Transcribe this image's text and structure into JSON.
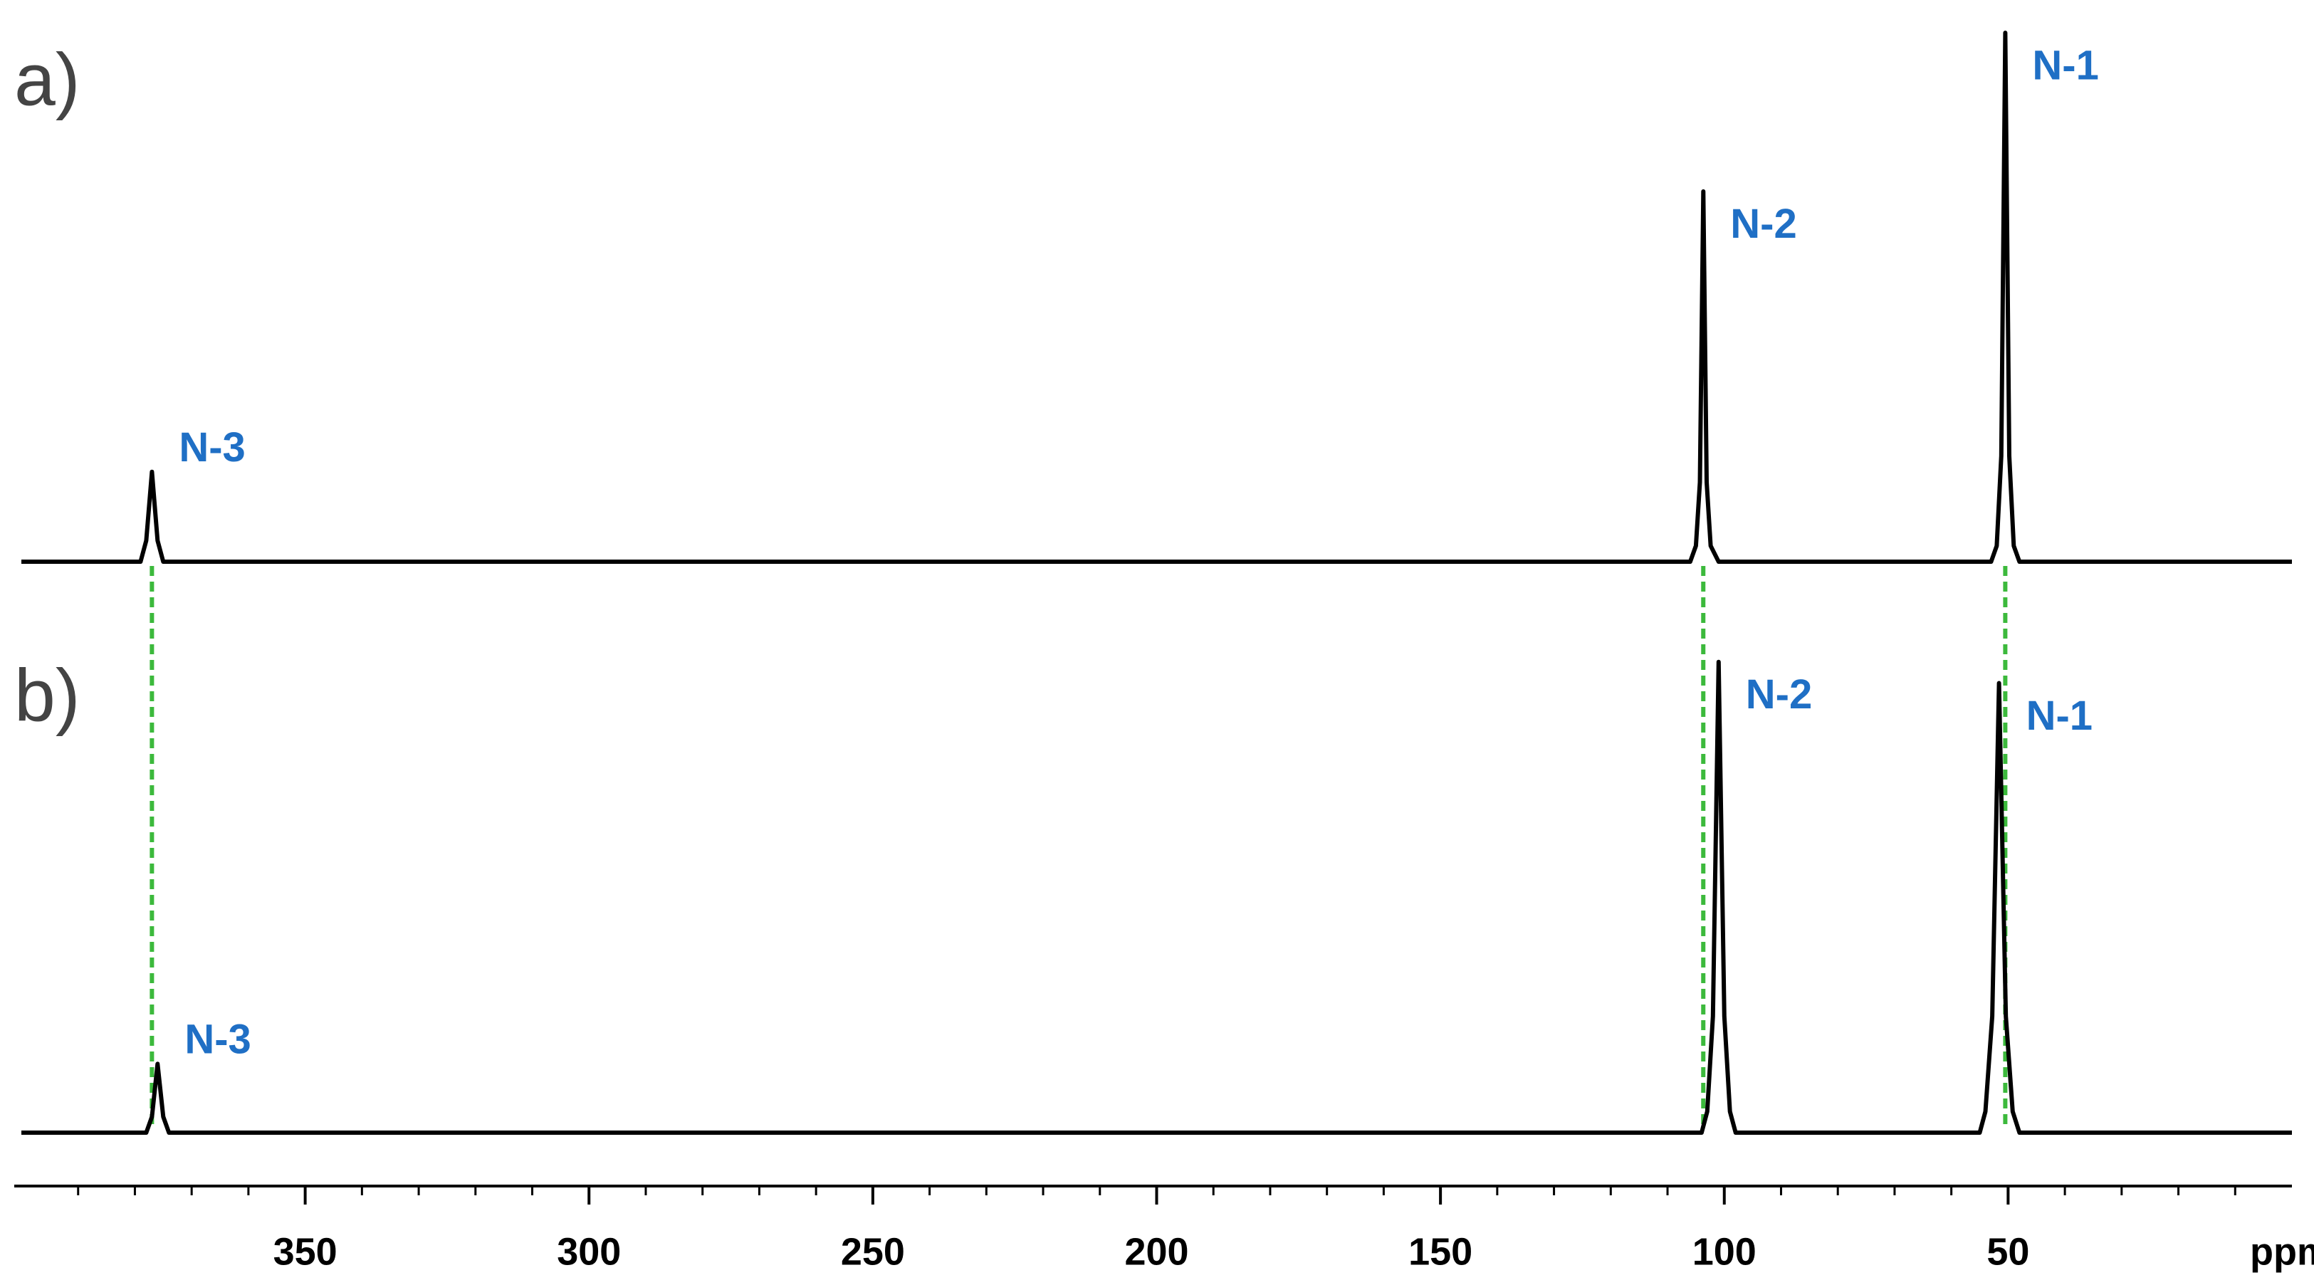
{
  "chart_data": {
    "type": "line",
    "xlabel": "ppm",
    "xlim": [
      400,
      0
    ],
    "xticks": [
      350,
      300,
      250,
      200,
      150,
      100,
      50
    ],
    "xminorticks": [
      390,
      380,
      370,
      360,
      340,
      330,
      320,
      310,
      290,
      280,
      270,
      260,
      240,
      230,
      220,
      210,
      190,
      180,
      170,
      160,
      140,
      130,
      120,
      110,
      90,
      80,
      70,
      60,
      40,
      30,
      20,
      10
    ],
    "ylim": [
      0,
      100
    ],
    "guide_color": "#3cb93c",
    "label_color": "#1f6fc5",
    "series": [
      {
        "name": "a)",
        "color": "#000000",
        "x": [
          400,
          379,
          378,
          377,
          376,
          375,
          106,
          105,
          104.3,
          103.7,
          103.1,
          102.4,
          101,
          53,
          52,
          51.2,
          50.5,
          49.8,
          49,
          48,
          0
        ],
        "values": [
          0,
          0,
          4,
          17,
          4,
          0,
          0,
          3,
          15,
          70,
          15,
          3,
          0,
          0,
          3,
          20,
          100,
          20,
          3,
          0,
          0
        ],
        "peaks": [
          {
            "label": "N-3",
            "x": 377
          },
          {
            "label": "N-2",
            "x": 103.7
          },
          {
            "label": "N-1",
            "x": 50.5
          }
        ]
      },
      {
        "name": "b)",
        "color": "#000000",
        "x": [
          400,
          378,
          377,
          376,
          375,
          374,
          104,
          103,
          102,
          101,
          100,
          99,
          98,
          55,
          54,
          52.8,
          51.6,
          50.4,
          49.2,
          48,
          0
        ],
        "values": [
          0,
          0,
          3,
          13,
          3,
          0,
          0,
          4,
          22,
          89,
          22,
          4,
          0,
          0,
          4,
          22,
          85,
          22,
          4,
          0,
          0
        ],
        "peaks": [
          {
            "label": "N-3",
            "x": 376
          },
          {
            "label": "N-2",
            "x": 101
          },
          {
            "label": "N-1",
            "x": 51.6
          }
        ]
      }
    ]
  }
}
